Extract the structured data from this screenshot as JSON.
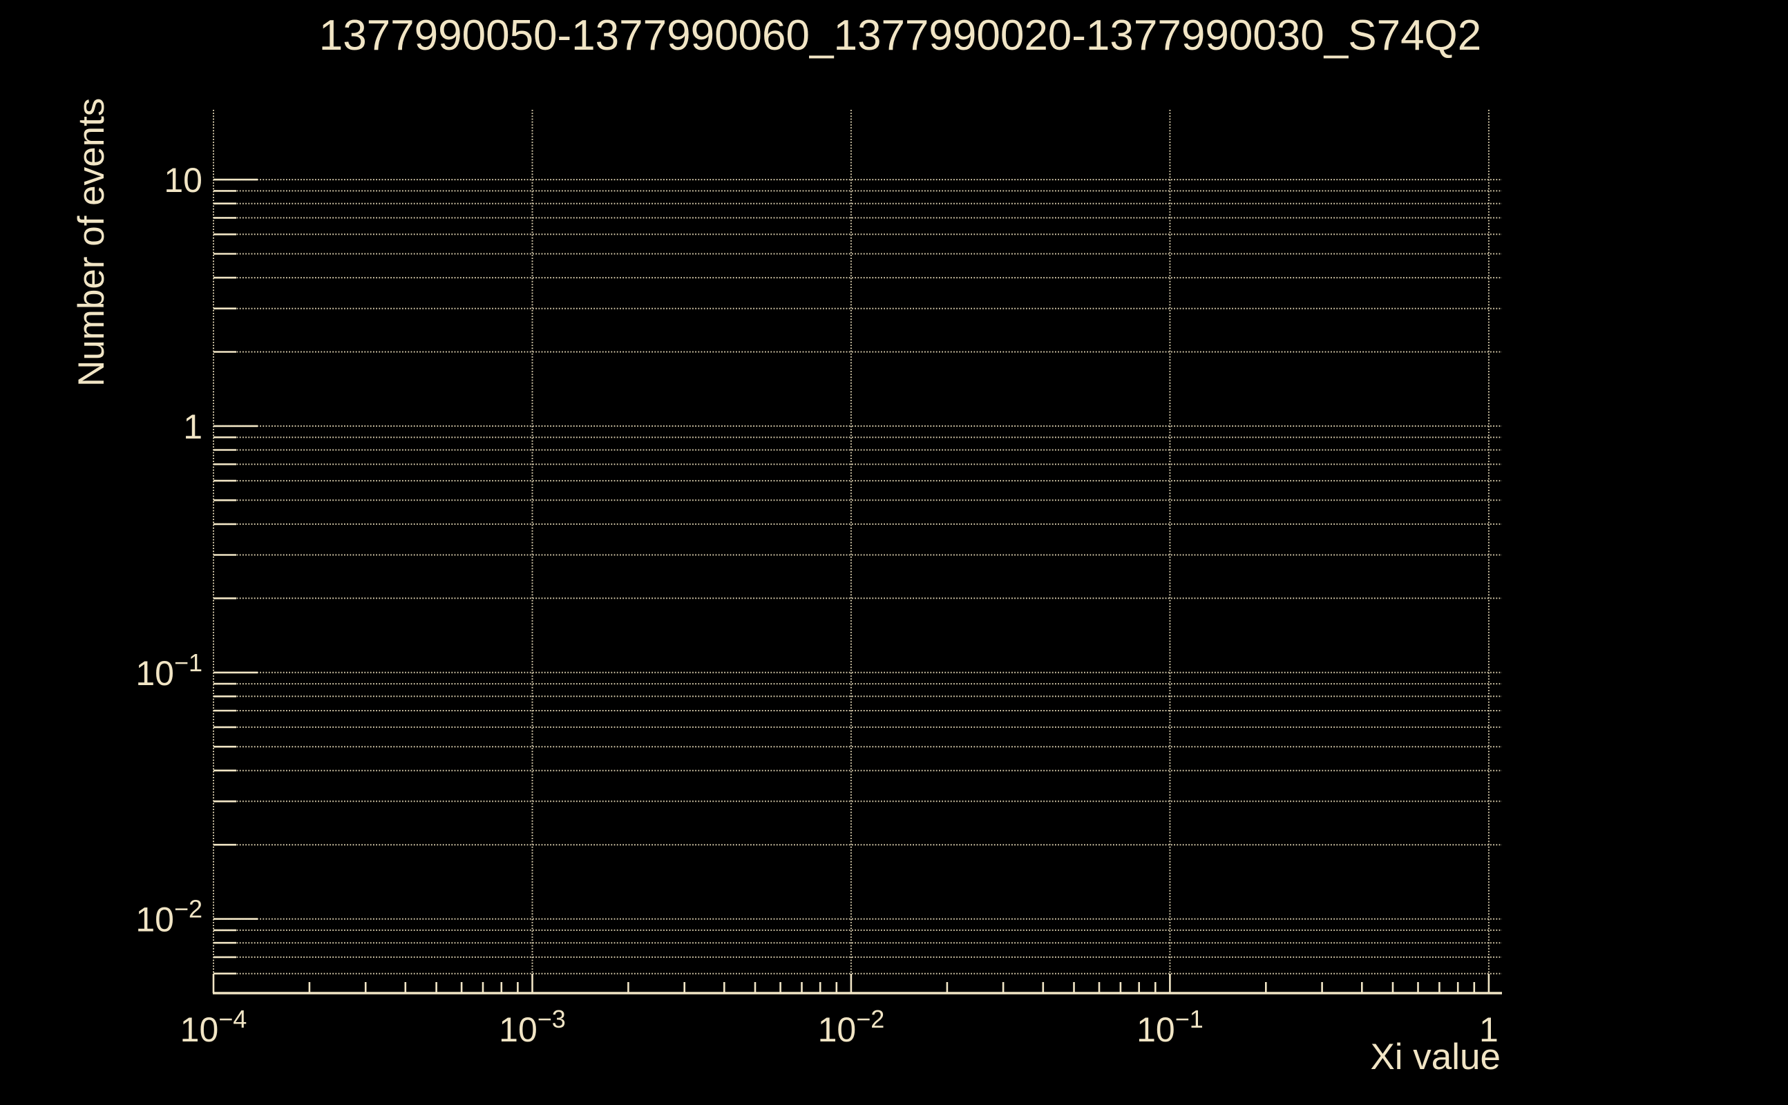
{
  "palette": {
    "background": "#000000",
    "foreground": "#f1e5c5",
    "grid": "#d9cdad"
  },
  "chart_data": {
    "type": "line",
    "title": "1377990050-1377990060_1377990020-1377990030_S74Q2",
    "xlabel": "Xi value",
    "ylabel": "Number of events",
    "xscale": "log",
    "yscale": "log",
    "xlim": [
      0.0001,
      1.1
    ],
    "ylim": [
      0.005,
      19.2
    ],
    "grid": true,
    "grid_style": "dotted",
    "legend": "none",
    "x_ticks": [
      {
        "value": 0.0001,
        "base": "10",
        "exp": "−4"
      },
      {
        "value": 0.001,
        "base": "10",
        "exp": "−3"
      },
      {
        "value": 0.01,
        "base": "10",
        "exp": "−2"
      },
      {
        "value": 0.1,
        "base": "10",
        "exp": "−1"
      },
      {
        "value": 1,
        "base": "1",
        "exp": ""
      }
    ],
    "y_ticks": [
      {
        "value": 10,
        "base": "10",
        "exp": ""
      },
      {
        "value": 1,
        "base": "1",
        "exp": ""
      },
      {
        "value": 0.1,
        "base": "10",
        "exp": "−1"
      },
      {
        "value": 0.01,
        "base": "10",
        "exp": "−2"
      }
    ],
    "series": []
  }
}
